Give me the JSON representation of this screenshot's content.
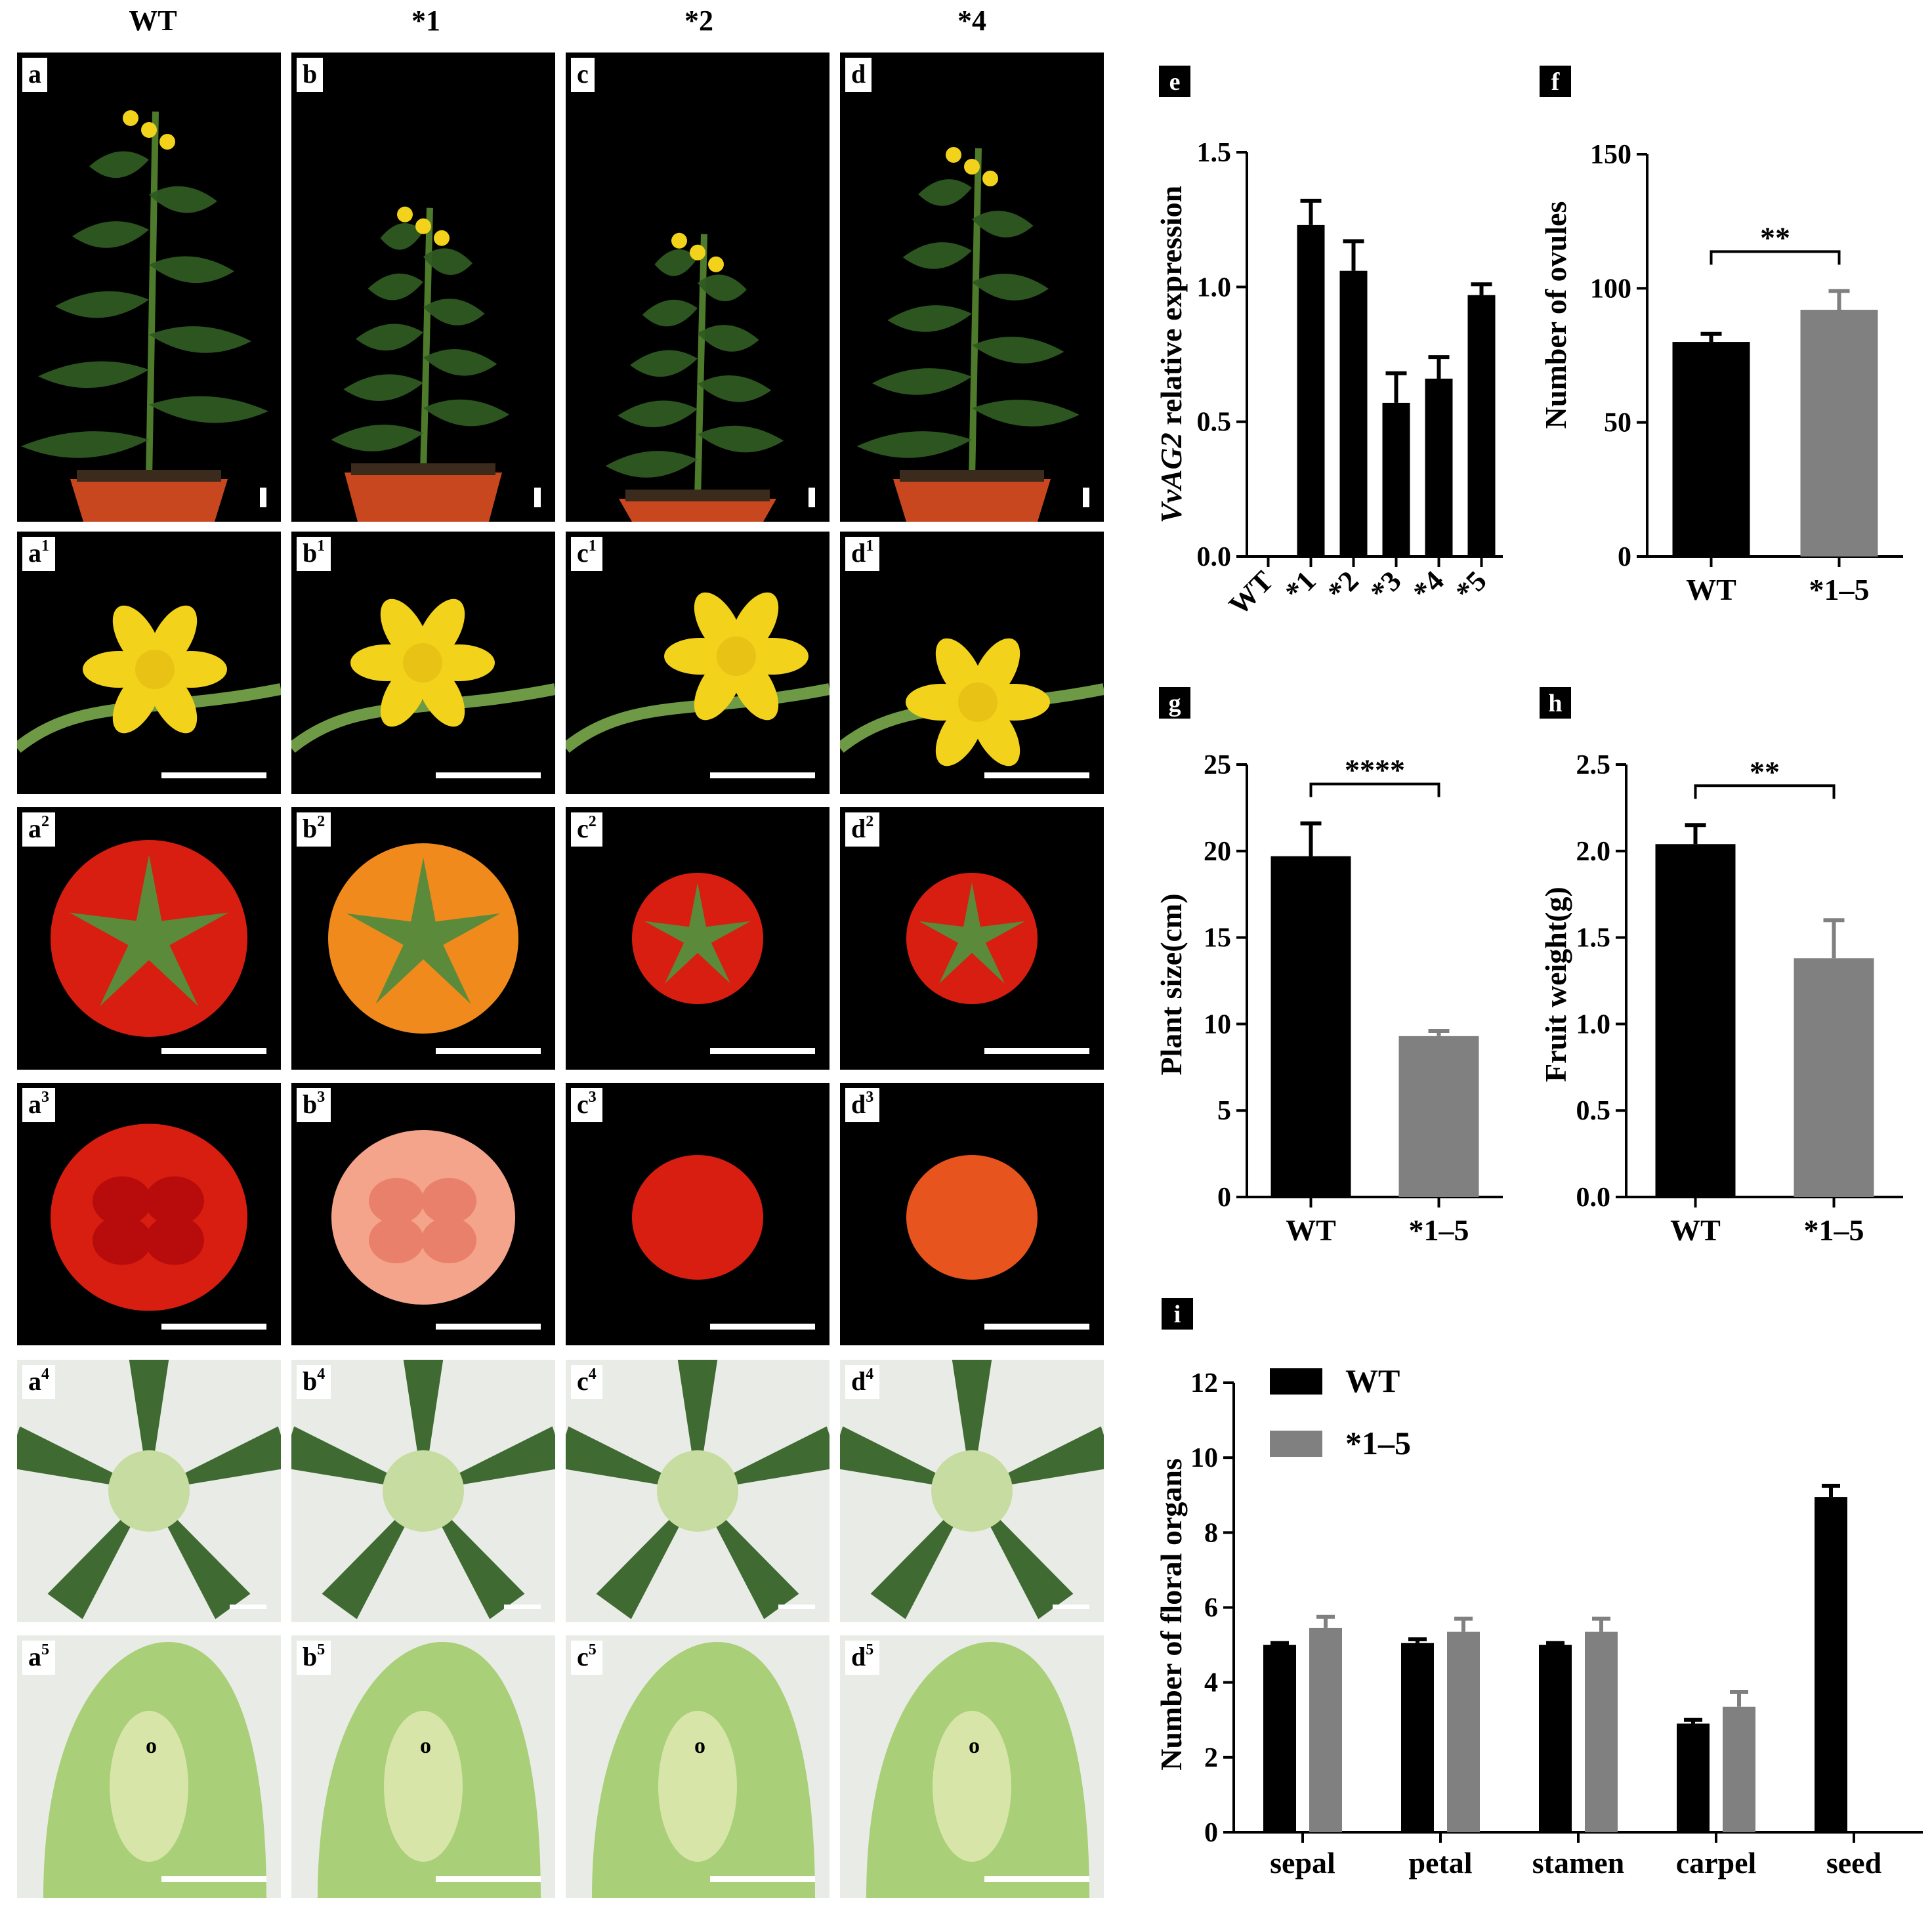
{
  "columns": [
    "WT",
    "*1",
    "*2",
    "*4"
  ],
  "photo_rows": [
    [
      "a",
      "b",
      "c",
      "d"
    ],
    [
      "a1",
      "b1",
      "c1",
      "d1"
    ],
    [
      "a2",
      "b2",
      "c2",
      "d2"
    ],
    [
      "a3",
      "b3",
      "c3",
      "d3"
    ],
    [
      "a4",
      "b4",
      "c4",
      "d4"
    ],
    [
      "a5",
      "b5",
      "c5",
      "d5"
    ]
  ],
  "ovule_marker": "o",
  "colors": {
    "wt": "#000000",
    "mutant": "#808080",
    "pot": "#c8471e",
    "leaf": "#2e5a22",
    "flower": "#f2d21a",
    "fruit_red": "#d81e10",
    "fruit_orange": "#f08a1c",
    "pistil": "#c7dca0"
  },
  "chart_data": [
    {
      "id": "e",
      "type": "bar",
      "categories": [
        "WT",
        "*1",
        "*2",
        "*3",
        "*4",
        "*5"
      ],
      "values": [
        0,
        1.23,
        1.06,
        0.57,
        0.66,
        0.97
      ],
      "errors": [
        0,
        0.09,
        0.11,
        0.11,
        0.08,
        0.04
      ],
      "ylabel_italic": "VvAG2",
      "ylabel": " relative expression",
      "ylim": [
        0,
        1.5
      ],
      "yticks": [
        "0.0",
        "0.5",
        "1.0",
        "1.5"
      ],
      "tick_values": [
        0,
        0.5,
        1.0,
        1.5
      ],
      "significance": ""
    },
    {
      "id": "f",
      "type": "bar",
      "categories": [
        "WT",
        "*1–5"
      ],
      "values": [
        80,
        92
      ],
      "errors": [
        3,
        7
      ],
      "ylabel": "Number of ovules",
      "ylim": [
        0,
        150
      ],
      "yticks": [
        "0",
        "50",
        "100",
        "150"
      ],
      "tick_values": [
        0,
        50,
        100,
        150
      ],
      "significance": "**"
    },
    {
      "id": "g",
      "type": "bar",
      "categories": [
        "WT",
        "*1–5"
      ],
      "values": [
        19.7,
        9.3
      ],
      "errors": [
        1.9,
        0.3
      ],
      "ylabel": "Plant size(cm)",
      "ylim": [
        0,
        25
      ],
      "yticks": [
        "0",
        "5",
        "10",
        "15",
        "20",
        "25"
      ],
      "tick_values": [
        0,
        5,
        10,
        15,
        20,
        25
      ],
      "significance": "****"
    },
    {
      "id": "h",
      "type": "bar",
      "categories": [
        "WT",
        "*1–5"
      ],
      "values": [
        2.04,
        1.38
      ],
      "errors": [
        0.11,
        0.22
      ],
      "ylabel": "Fruit weight(g)",
      "ylim": [
        0,
        2.5
      ],
      "yticks": [
        "0.0",
        "0.5",
        "1.0",
        "1.5",
        "2.0",
        "2.5"
      ],
      "tick_values": [
        0,
        0.5,
        1.0,
        1.5,
        2.0,
        2.5
      ],
      "significance": "**"
    },
    {
      "id": "i",
      "type": "bar",
      "categories": [
        "sepal",
        "petal",
        "stamen",
        "carpel",
        "seed"
      ],
      "series": [
        {
          "name": "WT",
          "values": [
            5.0,
            5.05,
            5.0,
            2.9,
            8.95
          ],
          "errors": [
            0.05,
            0.1,
            0.05,
            0.1,
            0.3
          ]
        },
        {
          "name": "*1–5",
          "values": [
            5.45,
            5.35,
            5.35,
            3.35,
            null
          ],
          "errors": [
            0.3,
            0.35,
            0.35,
            0.4,
            null
          ]
        }
      ],
      "ylabel": "Number of floral organs",
      "ylim": [
        0,
        12
      ],
      "yticks": [
        "0",
        "2",
        "4",
        "6",
        "8",
        "10",
        "12"
      ],
      "tick_values": [
        0,
        2,
        4,
        6,
        8,
        10,
        12
      ],
      "legend": "top-left"
    }
  ]
}
